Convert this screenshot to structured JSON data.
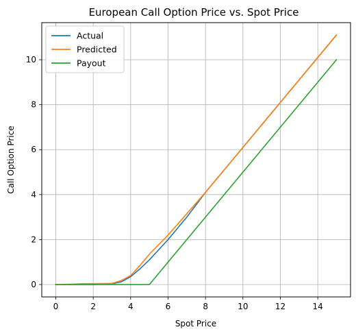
{
  "chart_data": {
    "type": "line",
    "title": "European Call Option Price vs. Spot Price",
    "xlabel": "Spot Price",
    "ylabel": "Call Option Price",
    "xlim": [
      -0.75,
      15.75
    ],
    "ylim": [
      -0.55,
      11.65
    ],
    "xticks": [
      0,
      2,
      4,
      6,
      8,
      10,
      12,
      14
    ],
    "yticks": [
      0,
      2,
      4,
      6,
      8,
      10
    ],
    "grid": true,
    "legend_position": "top-left",
    "series": [
      {
        "name": "Actual",
        "color": "#1f77b4",
        "x": [
          0,
          1,
          2,
          3,
          3.5,
          4,
          4.5,
          5,
          5.5,
          6,
          7,
          8,
          9,
          10,
          11,
          12,
          13,
          14,
          15
        ],
        "y": [
          0,
          0,
          0,
          0.03,
          0.12,
          0.35,
          0.7,
          1.1,
          1.55,
          2.0,
          3.0,
          4.1,
          5.1,
          6.1,
          7.1,
          8.1,
          9.1,
          10.1,
          11.1
        ]
      },
      {
        "name": "Predicted",
        "color": "#ff7f0e",
        "x": [
          0,
          1,
          1.5,
          2,
          3,
          3.5,
          4,
          4.5,
          5,
          6,
          7,
          8,
          9,
          10,
          11,
          12,
          13,
          14,
          15
        ],
        "y": [
          0,
          0.02,
          0.04,
          0.04,
          0.05,
          0.18,
          0.4,
          0.85,
          1.35,
          2.2,
          3.15,
          4.1,
          5.1,
          6.1,
          7.1,
          8.1,
          9.1,
          10.1,
          11.1
        ]
      },
      {
        "name": "Payout",
        "color": "#2ca02c",
        "x": [
          0,
          5,
          15
        ],
        "y": [
          0,
          0,
          10
        ]
      }
    ]
  }
}
